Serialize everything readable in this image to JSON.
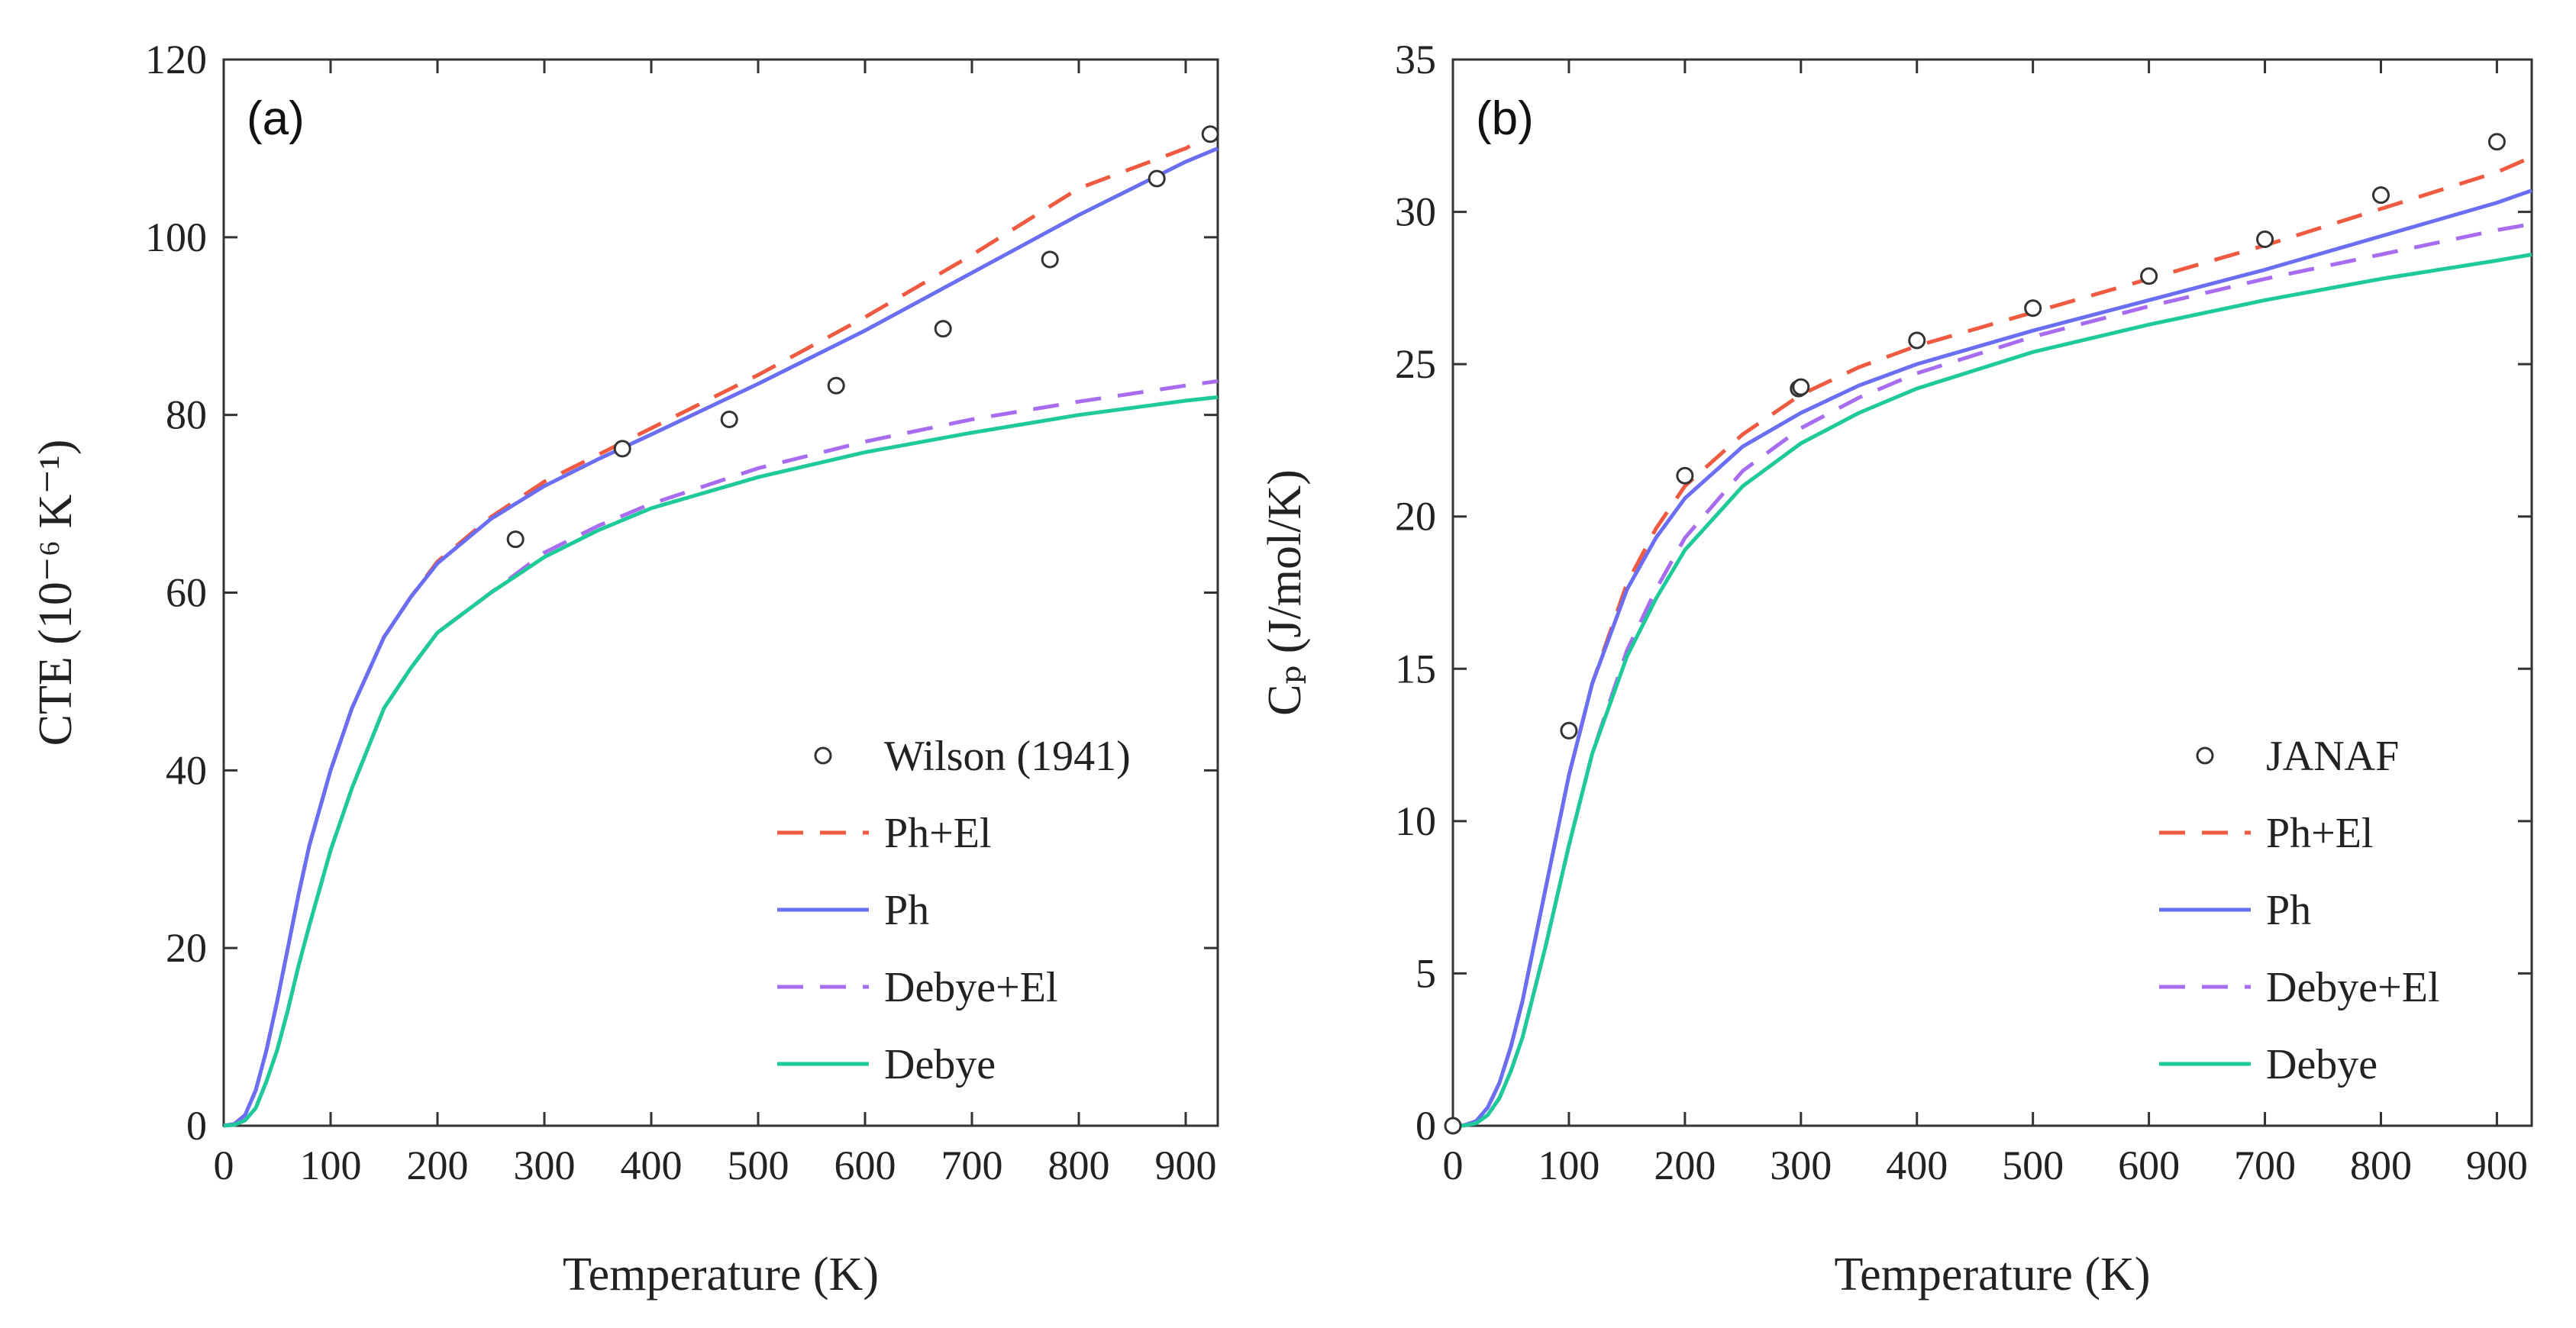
{
  "chart_data": [
    {
      "panel": "(a)",
      "type": "line",
      "xlabel": "Temperature (K)",
      "ylabel": "CTE (10⁻⁶ K⁻¹)",
      "xlim": [
        0,
        930
      ],
      "ylim": [
        0,
        120
      ],
      "xticks": [
        0,
        100,
        200,
        300,
        400,
        500,
        600,
        700,
        800,
        900
      ],
      "yticks": [
        0,
        20,
        40,
        60,
        80,
        100,
        120
      ],
      "grid": false,
      "legend_position": "bottom-right",
      "colors": {
        "exp": "#333333",
        "ph_el": "#f05a40",
        "ph": "#6a6ef2",
        "debye_el": "#a86cf0",
        "debye": "#1ec99a"
      },
      "experiment": {
        "name": "Wilson (1941)",
        "x": [
          273,
          373,
          473,
          573,
          673,
          773,
          873,
          923
        ],
        "y": [
          66,
          76.2,
          79.5,
          83.3,
          89.7,
          97.5,
          106.6,
          111.6
        ]
      },
      "series": [
        {
          "name": "Ph+El",
          "style": "dashed",
          "color_key": "ph_el",
          "x": [
            0,
            10,
            20,
            30,
            40,
            50,
            60,
            70,
            80,
            100,
            120,
            150,
            175,
            200,
            250,
            300,
            350,
            400,
            500,
            600,
            700,
            800,
            900,
            930
          ],
          "y": [
            0,
            0.2,
            1.2,
            4,
            8.5,
            14,
            20,
            26,
            31.5,
            40,
            47,
            55,
            59.5,
            63.5,
            68.5,
            72.5,
            75.5,
            78.5,
            84.5,
            91,
            98,
            105.5,
            110,
            112
          ]
        },
        {
          "name": "Ph",
          "style": "solid",
          "color_key": "ph",
          "x": [
            0,
            10,
            20,
            30,
            40,
            50,
            60,
            70,
            80,
            100,
            120,
            150,
            175,
            200,
            250,
            300,
            350,
            400,
            500,
            600,
            700,
            800,
            900,
            930
          ],
          "y": [
            0,
            0.2,
            1.2,
            4,
            8.5,
            14,
            20,
            26,
            31.5,
            40,
            47,
            55,
            59.5,
            63.3,
            68.3,
            72,
            75,
            77.8,
            83.5,
            89.5,
            96,
            102.5,
            108.5,
            110
          ]
        },
        {
          "name": "Debye+El",
          "style": "dashed",
          "color_key": "debye_el",
          "x": [
            0,
            10,
            20,
            30,
            40,
            50,
            60,
            70,
            80,
            100,
            120,
            150,
            175,
            200,
            250,
            300,
            350,
            400,
            500,
            600,
            700,
            800,
            900,
            930
          ],
          "y": [
            0,
            0.1,
            0.6,
            2,
            5,
            8.5,
            13,
            18,
            22.5,
            31,
            38,
            47,
            51.5,
            55.5,
            60,
            64.5,
            67.5,
            70,
            74,
            77,
            79.5,
            81.5,
            83.3,
            83.8
          ]
        },
        {
          "name": "Debye",
          "style": "solid",
          "color_key": "debye",
          "x": [
            0,
            10,
            20,
            30,
            40,
            50,
            60,
            70,
            80,
            100,
            120,
            150,
            175,
            200,
            250,
            300,
            350,
            400,
            500,
            600,
            700,
            800,
            900,
            930
          ],
          "y": [
            0,
            0.1,
            0.6,
            2,
            5,
            8.5,
            13,
            18,
            22.5,
            31,
            38,
            47,
            51.5,
            55.5,
            60,
            64,
            67,
            69.5,
            73,
            75.8,
            78,
            80,
            81.6,
            82
          ]
        }
      ]
    },
    {
      "panel": "(b)",
      "type": "line",
      "xlabel": "Temperature (K)",
      "ylabel": "Cₚ (J/mol/K)",
      "xlim": [
        0,
        930
      ],
      "ylim": [
        0,
        35
      ],
      "xticks": [
        0,
        100,
        200,
        300,
        400,
        500,
        600,
        700,
        800,
        900
      ],
      "yticks": [
        0,
        5,
        10,
        15,
        20,
        25,
        30,
        35
      ],
      "grid": false,
      "legend_position": "bottom-right",
      "colors": {
        "exp": "#333333",
        "ph_el": "#f05a40",
        "ph": "#6a6ef2",
        "debye_el": "#a86cf0",
        "debye": "#1ec99a"
      },
      "experiment": {
        "name": "JANAF",
        "x": [
          0,
          100,
          200,
          298,
          300,
          400,
          500,
          600,
          700,
          800,
          900
        ],
        "y": [
          0,
          12.97,
          21.34,
          24.2,
          24.25,
          25.78,
          26.84,
          27.89,
          29.1,
          30.55,
          32.3
        ]
      },
      "series": [
        {
          "name": "Ph+El",
          "style": "dashed",
          "color_key": "ph_el",
          "x": [
            0,
            10,
            20,
            30,
            40,
            50,
            60,
            80,
            100,
            120,
            150,
            175,
            200,
            250,
            300,
            350,
            400,
            500,
            600,
            700,
            800,
            900,
            930
          ],
          "y": [
            0,
            0.02,
            0.15,
            0.6,
            1.4,
            2.6,
            4.1,
            7.8,
            11.5,
            14.5,
            17.8,
            19.6,
            21,
            22.7,
            24,
            24.9,
            25.6,
            26.7,
            27.8,
            28.9,
            30.1,
            31.3,
            31.8
          ]
        },
        {
          "name": "Ph",
          "style": "solid",
          "color_key": "ph",
          "x": [
            0,
            10,
            20,
            30,
            40,
            50,
            60,
            80,
            100,
            120,
            150,
            175,
            200,
            250,
            300,
            350,
            400,
            500,
            600,
            700,
            800,
            900,
            930
          ],
          "y": [
            0,
            0.02,
            0.15,
            0.6,
            1.4,
            2.6,
            4.1,
            7.8,
            11.5,
            14.5,
            17.6,
            19.3,
            20.6,
            22.3,
            23.4,
            24.3,
            25,
            26.1,
            27.1,
            28.1,
            29.2,
            30.3,
            30.7
          ]
        },
        {
          "name": "Debye+El",
          "style": "dashed",
          "color_key": "debye_el",
          "x": [
            0,
            10,
            20,
            30,
            40,
            50,
            60,
            80,
            100,
            120,
            150,
            175,
            200,
            250,
            300,
            350,
            400,
            500,
            600,
            700,
            800,
            900,
            930
          ],
          "y": [
            0,
            0.01,
            0.08,
            0.35,
            0.9,
            1.8,
            2.9,
            5.9,
            9.2,
            12.2,
            15.6,
            17.6,
            19.3,
            21.5,
            22.9,
            23.9,
            24.7,
            25.9,
            26.9,
            27.8,
            28.6,
            29.4,
            29.6
          ]
        },
        {
          "name": "Debye",
          "style": "solid",
          "color_key": "debye",
          "x": [
            0,
            10,
            20,
            30,
            40,
            50,
            60,
            80,
            100,
            120,
            150,
            175,
            200,
            250,
            300,
            350,
            400,
            500,
            600,
            700,
            800,
            900,
            930
          ],
          "y": [
            0,
            0.01,
            0.08,
            0.35,
            0.9,
            1.8,
            2.9,
            5.9,
            9.2,
            12.2,
            15.4,
            17.3,
            18.9,
            21,
            22.4,
            23.4,
            24.2,
            25.4,
            26.3,
            27.1,
            27.8,
            28.4,
            28.6
          ]
        }
      ]
    }
  ]
}
